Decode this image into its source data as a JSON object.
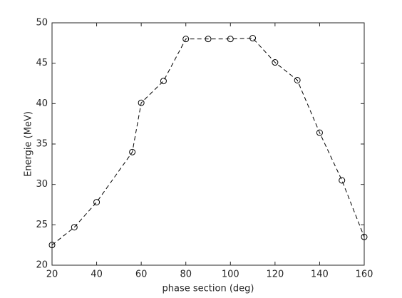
{
  "chart_data": {
    "type": "line",
    "xlabel": "phase section (deg)",
    "ylabel": "Energie (MeV)",
    "x": [
      20,
      30,
      40,
      56,
      60,
      70,
      80,
      90,
      100,
      110,
      120,
      130,
      140,
      150,
      160
    ],
    "series": [
      {
        "color": "#000000",
        "values": [
          22.5,
          24.7,
          27.8,
          34,
          40.1,
          42.8,
          48,
          48,
          48,
          48.1,
          45.1,
          42.9,
          36.4,
          30.5,
          23.5
        ]
      }
    ],
    "xlim": [
      20,
      160
    ],
    "xticks": [
      20,
      40,
      60,
      80,
      100,
      120,
      140,
      160
    ],
    "ylim": [
      20,
      50
    ],
    "yticks": [
      20,
      25,
      30,
      35,
      40,
      45,
      50
    ]
  }
}
